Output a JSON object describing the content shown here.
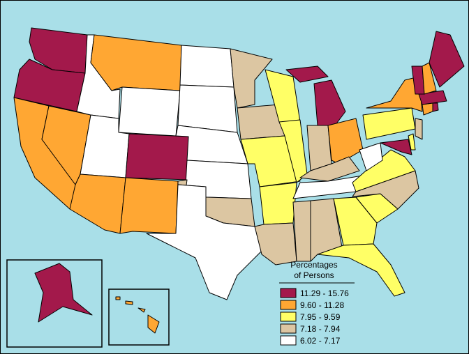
{
  "map": {
    "legend_title": [
      "Percentages",
      "of Persons"
    ],
    "classes": [
      {
        "label": "11.29 - 15.76",
        "color": "#a3194b"
      },
      {
        "label": "9.60 - 11.28",
        "color": "#ffa733"
      },
      {
        "label": "7.95 - 9.59",
        "color": "#ffff66"
      },
      {
        "label": "7.18 - 7.94",
        "color": "#dcc6a2"
      },
      {
        "label": "6.02 - 7.17",
        "color": "#ffffff"
      }
    ],
    "region_class": [
      0,
      0,
      1,
      1,
      4,
      1,
      4,
      4,
      0,
      1,
      1,
      4,
      4,
      4,
      4,
      3,
      4,
      3,
      3,
      2,
      2,
      3,
      2,
      2,
      0,
      3,
      1,
      3,
      4,
      3,
      3,
      2,
      2,
      2,
      3,
      2,
      4,
      2,
      1,
      0,
      2,
      3,
      1,
      0,
      0,
      0,
      1,
      0,
      0,
      1
    ]
  }
}
